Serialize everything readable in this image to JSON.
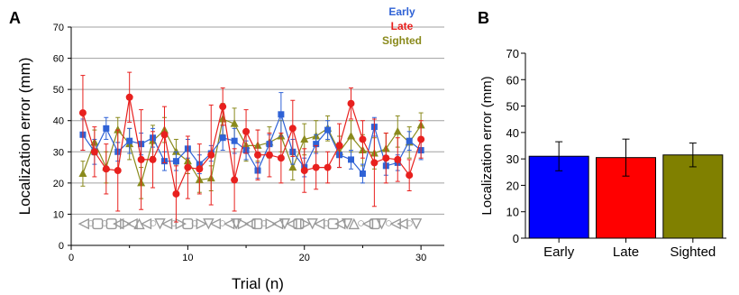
{
  "panels": {
    "a_label": "A",
    "b_label": "B"
  },
  "colors": {
    "early": "#2f62d6",
    "late": "#e8201e",
    "sighted": "#8a8a1c",
    "grid": "#a0a0a0",
    "symbols": "#999999"
  },
  "chart_data": [
    {
      "type": "line",
      "panel": "A",
      "title": "",
      "xlabel": "Trial (n)",
      "ylabel": "Localization error (mm)",
      "xlim": [
        0,
        32
      ],
      "ylim": [
        0,
        70
      ],
      "x_ticks": [
        0,
        10,
        20,
        30
      ],
      "y_ticks": [
        0,
        10,
        20,
        30,
        40,
        50,
        60,
        70
      ],
      "grid": true,
      "legend": "top-right",
      "x": [
        1,
        2,
        3,
        4,
        5,
        6,
        7,
        8,
        9,
        10,
        11,
        12,
        13,
        14,
        15,
        16,
        17,
        18,
        19,
        20,
        21,
        22,
        23,
        24,
        25,
        26,
        27,
        28,
        29,
        30
      ],
      "series": [
        {
          "name": "Early",
          "marker": "square",
          "values": [
            35.5,
            30,
            37.5,
            30,
            33.5,
            32.5,
            34.5,
            27,
            27,
            31,
            26,
            29.5,
            34.5,
            33.5,
            30.5,
            24,
            32.5,
            42,
            30,
            25,
            32.5,
            37,
            29,
            27.5,
            23,
            38,
            25.5,
            26.5,
            33.5,
            30.5
          ],
          "error": [
            5,
            4,
            3.5,
            3,
            4,
            3.5,
            3,
            3,
            3,
            3,
            3,
            2.5,
            4,
            4,
            3,
            2.5,
            3,
            7,
            4,
            3,
            3,
            3,
            4,
            3,
            3,
            3,
            3,
            2.5,
            3,
            3
          ]
        },
        {
          "name": "Late",
          "marker": "circle",
          "values": [
            42.5,
            30,
            24.5,
            24,
            47.5,
            27.5,
            27.5,
            35.5,
            16.5,
            25,
            24.5,
            29,
            44.5,
            21,
            36.5,
            29,
            29,
            28,
            37.5,
            24,
            25,
            25,
            32,
            45.5,
            34,
            26.5,
            28,
            27.5,
            22.5,
            34
          ],
          "error": [
            12,
            8,
            8,
            13,
            8,
            16,
            9,
            9,
            9,
            10,
            8,
            16,
            6,
            10,
            7,
            8,
            7,
            8,
            9,
            7,
            7,
            5,
            7,
            5,
            6,
            14,
            8,
            7,
            5,
            6
          ]
        },
        {
          "name": "Sighted",
          "marker": "triangle",
          "values": [
            23,
            33,
            25,
            37,
            32.5,
            20,
            33.5,
            37,
            30,
            27,
            21,
            21.5,
            40.5,
            39,
            32,
            32,
            33,
            35,
            25,
            34,
            35,
            37.5,
            30,
            35,
            30.5,
            29.5,
            31,
            36.5,
            33,
            38.5
          ],
          "error": [
            4,
            4,
            5,
            4,
            5,
            5,
            5,
            4,
            4,
            4,
            4,
            4,
            5,
            5,
            5,
            5,
            5,
            5,
            4,
            5,
            5,
            4,
            5,
            5,
            5,
            5,
            5,
            5,
            5,
            4
          ]
        }
      ],
      "symbol_row": {
        "y": 7.5,
        "glyphs": [
          "◁",
          "○",
          "▢",
          "○",
          "▢",
          "◁",
          "▷",
          "◁",
          "△",
          "◁",
          "○",
          "▽",
          "◁",
          "○",
          "▷",
          "▢",
          "○",
          "▷",
          "▽",
          "◁",
          "○",
          "◁",
          "▽",
          "▷",
          "◁",
          "▢",
          "○",
          "▷",
          "◁",
          "▽",
          "◁",
          "▢",
          "▷",
          "▽",
          "◁",
          "○",
          "▢",
          "◁",
          "▽",
          "△",
          "○",
          "◁",
          "▢",
          "▽",
          "○",
          "◁",
          "◁",
          "○",
          "▽"
        ]
      }
    },
    {
      "type": "bar",
      "panel": "B",
      "title": "",
      "xlabel": "",
      "ylabel": "Localization error (mm)",
      "ylim": [
        0,
        70
      ],
      "y_ticks": [
        0,
        10,
        20,
        30,
        40,
        50,
        60,
        70
      ],
      "grid": false,
      "categories": [
        "Early",
        "Late",
        "Sighted"
      ],
      "values": [
        31,
        30.5,
        31.5
      ],
      "error": [
        5.5,
        7,
        4.5
      ],
      "bar_colors": [
        "#0000ff",
        "#ff0000",
        "#808000"
      ]
    }
  ]
}
